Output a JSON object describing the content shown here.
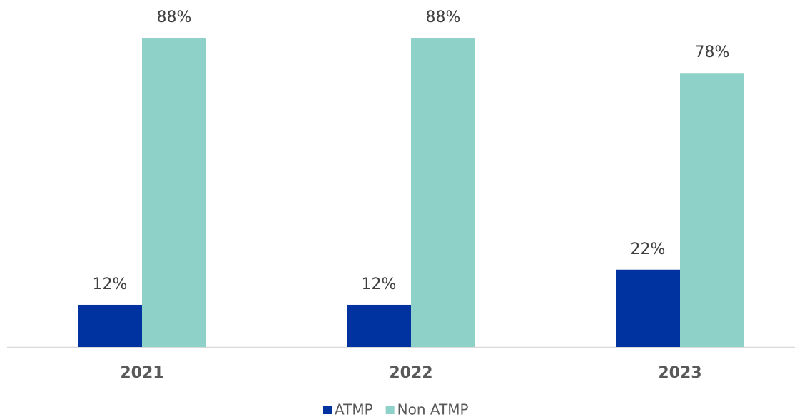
{
  "chart_data": {
    "type": "bar",
    "categories": [
      "2021",
      "2022",
      "2023"
    ],
    "series": [
      {
        "name": "ATMP",
        "color": "#0033a0",
        "values": [
          12,
          12,
          22
        ],
        "value_labels": [
          "12%",
          "12%",
          "22%"
        ]
      },
      {
        "name": "Non ATMP",
        "color": "#8ed1c9",
        "values": [
          88,
          88,
          78
        ],
        "value_labels": [
          "88%",
          "88%",
          "78%"
        ]
      }
    ],
    "legend": "bottom"
  }
}
